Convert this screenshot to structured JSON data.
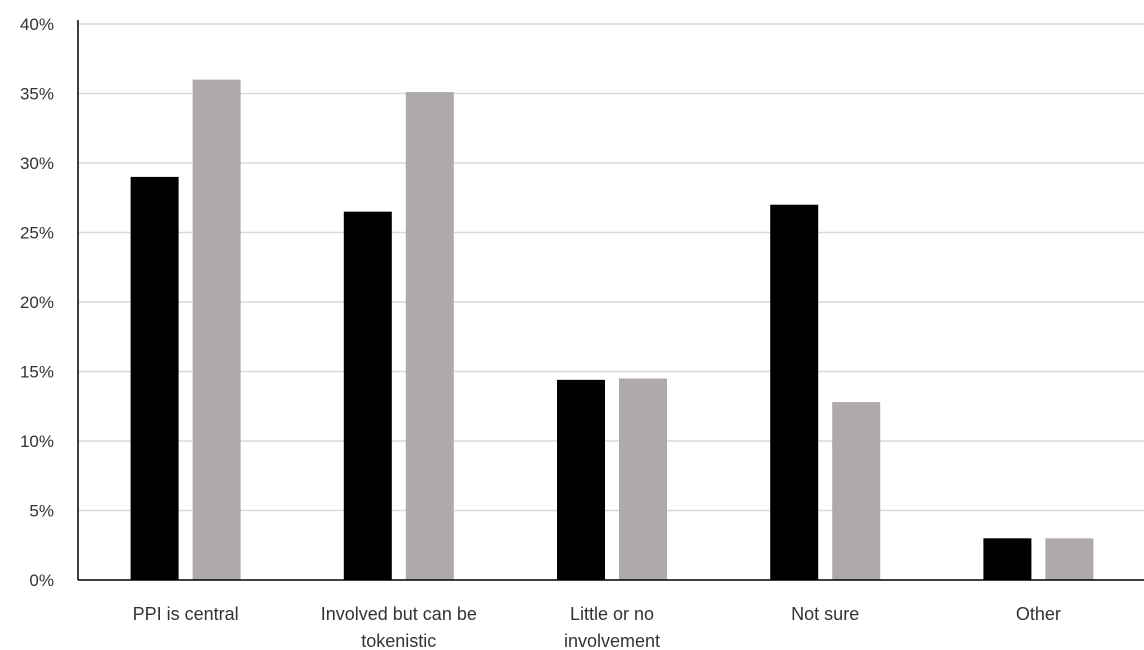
{
  "chart_data": {
    "type": "bar",
    "categories": [
      [
        "PPI is central"
      ],
      [
        "Involved but can be",
        "tokenistic"
      ],
      [
        "Little or no",
        "involvement"
      ],
      [
        "Not sure"
      ],
      [
        "Other"
      ]
    ],
    "series": [
      {
        "color": "#000000",
        "values": [
          29.0,
          26.5,
          14.4,
          27.0,
          3.0
        ]
      },
      {
        "color": "#aeaaaa",
        "values": [
          36.0,
          35.1,
          14.5,
          12.8,
          3.0
        ]
      }
    ],
    "y_ticks": [
      "0%",
      "5%",
      "10%",
      "15%",
      "20%",
      "25%",
      "30%",
      "35%",
      "40%"
    ],
    "ylim": [
      0,
      40
    ],
    "y_unit": "%",
    "grid": true,
    "legend": false
  }
}
